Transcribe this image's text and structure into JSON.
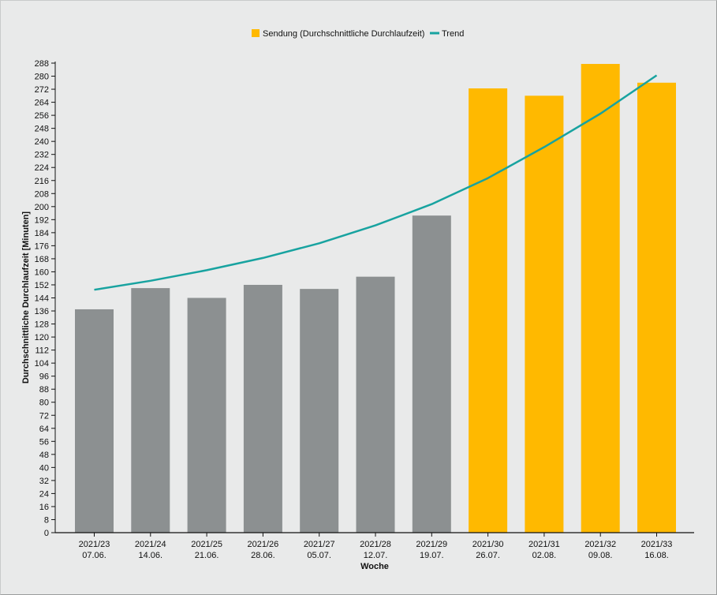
{
  "chart_data": {
    "type": "bar",
    "categories": [
      [
        "2021/23",
        "07.06."
      ],
      [
        "2021/24",
        "14.06."
      ],
      [
        "2021/25",
        "21.06."
      ],
      [
        "2021/26",
        "28.06."
      ],
      [
        "2021/27",
        "05.07."
      ],
      [
        "2021/28",
        "12.07."
      ],
      [
        "2021/29",
        "19.07."
      ],
      [
        "2021/30",
        "26.07."
      ],
      [
        "2021/31",
        "02.08."
      ],
      [
        "2021/32",
        "09.08."
      ],
      [
        "2021/33",
        "16.08."
      ]
    ],
    "series": [
      {
        "name": "Sendung (Durchschnittliche Durchlaufzeit)",
        "type": "bar",
        "values": [
          137,
          150,
          144,
          152,
          149.5,
          157,
          194.5,
          272.5,
          268,
          287.5,
          276
        ]
      },
      {
        "name": "Trend",
        "type": "line",
        "values": [
          149,
          154.5,
          161,
          168.5,
          177.5,
          188.5,
          201.5,
          217.5,
          236.5,
          257,
          280.5
        ]
      }
    ],
    "bar_colors": [
      "#8c9091",
      "#8c9091",
      "#8c9091",
      "#8c9091",
      "#8c9091",
      "#8c9091",
      "#8c9091",
      "#ffb900",
      "#ffb900",
      "#ffb900",
      "#ffb900"
    ],
    "colors": {
      "past_bar": "#8c9091",
      "highlight_bar": "#ffb900",
      "trend": "#18a3a0"
    },
    "xlabel": "Woche",
    "ylabel": "Durchschnittliche Durchlaufzeit [Minuten]",
    "ylim": [
      0,
      288
    ],
    "ytick_step": 8,
    "legend_position": "top-center",
    "grid": false
  }
}
